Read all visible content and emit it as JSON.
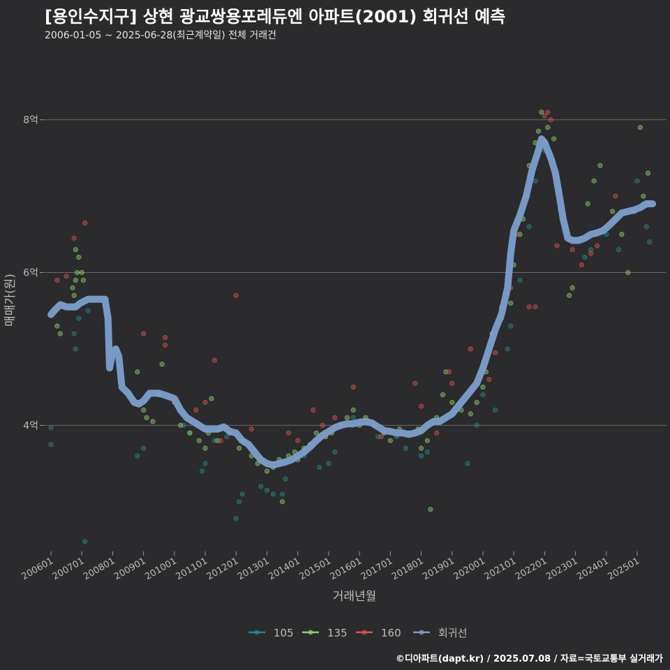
{
  "header": {
    "title": "[용인수지구] 상현 광교쌍용포레듀엔 아파트(2001) 회귀선 예측",
    "subtitle": "2006-01-05 ~ 2025-06-28(최근계약일) 전체 거래건"
  },
  "footer": {
    "credit": "©디아파트(dapt.kr) / 2025.07.08 / 자료=국토교통부 실거래가"
  },
  "chart_data": {
    "type": "scatter",
    "xlabel": "거래년월",
    "ylabel": "매매가(원)",
    "x_range": [
      2005.75,
      2025.95
    ],
    "ylim": [
      2.35,
      8.7
    ],
    "y_ticks": [
      {
        "value": 4,
        "label": "4억"
      },
      {
        "value": 6,
        "label": "6억"
      },
      {
        "value": 8,
        "label": "8억"
      }
    ],
    "x_ticks": [
      {
        "value": 2006,
        "label": "200601"
      },
      {
        "value": 2007,
        "label": "200701"
      },
      {
        "value": 2008,
        "label": "200801"
      },
      {
        "value": 2009,
        "label": "200901"
      },
      {
        "value": 2010,
        "label": "201001"
      },
      {
        "value": 2011,
        "label": "201101"
      },
      {
        "value": 2012,
        "label": "201201"
      },
      {
        "value": 2013,
        "label": "201301"
      },
      {
        "value": 2014,
        "label": "201401"
      },
      {
        "value": 2015,
        "label": "201501"
      },
      {
        "value": 2016,
        "label": "201601"
      },
      {
        "value": 2017,
        "label": "201701"
      },
      {
        "value": 2018,
        "label": "201801"
      },
      {
        "value": 2019,
        "label": "201901"
      },
      {
        "value": 2020,
        "label": "202001"
      },
      {
        "value": 2021,
        "label": "202101"
      },
      {
        "value": 2022,
        "label": "202201"
      },
      {
        "value": 2023,
        "label": "202301"
      },
      {
        "value": 2024,
        "label": "202401"
      },
      {
        "value": 2025,
        "label": "202501"
      }
    ],
    "grid": true,
    "legend_position": "bottom",
    "legend": [
      {
        "name": "105",
        "color": "#1e8b8b"
      },
      {
        "name": "135",
        "color": "#8fd16a"
      },
      {
        "name": "160",
        "color": "#d9534f"
      },
      {
        "name": "회귀선",
        "color": "#7b9fce"
      }
    ],
    "series": [
      {
        "name": "105",
        "color": "#1e8b8b",
        "points": [
          [
            2006.0,
            3.97
          ],
          [
            2006.0,
            3.75
          ],
          [
            2006.75,
            5.2
          ],
          [
            2006.8,
            5.0
          ],
          [
            2006.9,
            5.4
          ],
          [
            2007.1,
            2.48
          ],
          [
            2007.2,
            5.5
          ],
          [
            2008.8,
            3.6
          ],
          [
            2009.0,
            3.7
          ],
          [
            2010.3,
            4.0
          ],
          [
            2010.5,
            3.9
          ],
          [
            2010.9,
            3.4
          ],
          [
            2011.0,
            3.5
          ],
          [
            2011.3,
            3.8
          ],
          [
            2011.7,
            3.85
          ],
          [
            2012.0,
            2.78
          ],
          [
            2012.1,
            3.0
          ],
          [
            2012.2,
            3.1
          ],
          [
            2012.8,
            3.2
          ],
          [
            2013.0,
            3.15
          ],
          [
            2013.2,
            3.1
          ],
          [
            2013.5,
            3.1
          ],
          [
            2013.6,
            3.3
          ],
          [
            2014.2,
            3.6
          ],
          [
            2014.7,
            3.45
          ],
          [
            2015.0,
            3.5
          ],
          [
            2015.2,
            3.65
          ],
          [
            2015.8,
            4.1
          ],
          [
            2016.6,
            3.85
          ],
          [
            2017.2,
            3.85
          ],
          [
            2017.5,
            3.7
          ],
          [
            2018.0,
            3.6
          ],
          [
            2018.2,
            3.65
          ],
          [
            2019.5,
            3.5
          ],
          [
            2019.8,
            4.0
          ],
          [
            2020.0,
            4.4
          ],
          [
            2020.4,
            4.2
          ],
          [
            2020.8,
            5.0
          ],
          [
            2020.9,
            5.3
          ],
          [
            2021.2,
            5.9
          ],
          [
            2021.5,
            6.6
          ],
          [
            2021.7,
            7.2
          ],
          [
            2022.0,
            7.6
          ],
          [
            2023.3,
            6.2
          ],
          [
            2023.5,
            6.3
          ],
          [
            2024.0,
            6.5
          ],
          [
            2024.4,
            6.3
          ],
          [
            2025.0,
            7.2
          ],
          [
            2025.2,
            6.9
          ],
          [
            2025.3,
            6.6
          ],
          [
            2025.4,
            6.4
          ]
        ]
      },
      {
        "name": "135",
        "color": "#8fd16a",
        "points": [
          [
            2006.2,
            5.3
          ],
          [
            2006.3,
            5.2
          ],
          [
            2006.7,
            5.8
          ],
          [
            2006.8,
            5.9
          ],
          [
            2006.85,
            6.0
          ],
          [
            2006.9,
            6.2
          ],
          [
            2007.0,
            6.0
          ],
          [
            2007.05,
            5.9
          ],
          [
            2006.75,
            5.7
          ],
          [
            2006.8,
            6.3
          ],
          [
            2008.8,
            4.7
          ],
          [
            2009.0,
            4.2
          ],
          [
            2009.1,
            4.1
          ],
          [
            2009.3,
            4.05
          ],
          [
            2009.5,
            4.4
          ],
          [
            2009.6,
            4.8
          ],
          [
            2010.0,
            4.3
          ],
          [
            2010.2,
            4.0
          ],
          [
            2010.5,
            3.9
          ],
          [
            2010.8,
            3.8
          ],
          [
            2011.0,
            3.7
          ],
          [
            2011.1,
            3.9
          ],
          [
            2011.2,
            4.35
          ],
          [
            2011.4,
            3.8
          ],
          [
            2011.5,
            3.95
          ],
          [
            2011.8,
            3.9
          ],
          [
            2012.1,
            3.7
          ],
          [
            2012.2,
            3.8
          ],
          [
            2012.5,
            3.6
          ],
          [
            2012.7,
            3.5
          ],
          [
            2013.0,
            3.4
          ],
          [
            2013.2,
            3.45
          ],
          [
            2013.4,
            3.55
          ],
          [
            2013.5,
            3.0
          ],
          [
            2013.7,
            3.6
          ],
          [
            2013.9,
            3.65
          ],
          [
            2014.0,
            3.55
          ],
          [
            2014.2,
            3.7
          ],
          [
            2014.4,
            3.75
          ],
          [
            2014.6,
            3.9
          ],
          [
            2014.9,
            3.85
          ],
          [
            2015.1,
            3.9
          ],
          [
            2015.4,
            4.0
          ],
          [
            2015.6,
            4.1
          ],
          [
            2015.8,
            4.2
          ],
          [
            2016.0,
            4.0
          ],
          [
            2016.2,
            4.1
          ],
          [
            2016.5,
            4.0
          ],
          [
            2016.8,
            3.9
          ],
          [
            2017.0,
            3.8
          ],
          [
            2017.3,
            3.95
          ],
          [
            2017.6,
            3.9
          ],
          [
            2017.9,
            3.95
          ],
          [
            2018.0,
            3.7
          ],
          [
            2018.2,
            3.8
          ],
          [
            2018.3,
            2.9
          ],
          [
            2018.5,
            4.1
          ],
          [
            2018.7,
            4.4
          ],
          [
            2018.8,
            4.7
          ],
          [
            2019.0,
            4.3
          ],
          [
            2019.3,
            4.2
          ],
          [
            2019.6,
            4.15
          ],
          [
            2019.8,
            4.3
          ],
          [
            2020.0,
            4.5
          ],
          [
            2020.1,
            4.7
          ],
          [
            2020.3,
            5.2
          ],
          [
            2020.6,
            5.4
          ],
          [
            2020.9,
            5.6
          ],
          [
            2021.0,
            6.1
          ],
          [
            2021.2,
            6.5
          ],
          [
            2021.3,
            6.7
          ],
          [
            2021.4,
            7.0
          ],
          [
            2021.5,
            7.4
          ],
          [
            2021.7,
            7.7
          ],
          [
            2021.8,
            7.85
          ],
          [
            2021.9,
            8.1
          ],
          [
            2022.0,
            7.7
          ],
          [
            2022.1,
            7.9
          ],
          [
            2022.3,
            7.75
          ],
          [
            2022.8,
            5.7
          ],
          [
            2022.9,
            5.8
          ],
          [
            2023.4,
            6.9
          ],
          [
            2023.6,
            7.2
          ],
          [
            2023.8,
            7.4
          ],
          [
            2024.2,
            6.8
          ],
          [
            2024.5,
            6.5
          ],
          [
            2024.7,
            6.0
          ],
          [
            2024.9,
            6.8
          ],
          [
            2025.1,
            7.9
          ],
          [
            2025.2,
            7.0
          ],
          [
            2025.35,
            7.3
          ],
          [
            2025.4,
            6.9
          ]
        ]
      },
      {
        "name": "160",
        "color": "#d9534f",
        "points": [
          [
            2006.2,
            5.9
          ],
          [
            2006.5,
            5.95
          ],
          [
            2006.75,
            6.45
          ],
          [
            2007.1,
            6.65
          ],
          [
            2009.0,
            5.2
          ],
          [
            2009.7,
            5.15
          ],
          [
            2009.7,
            5.05
          ],
          [
            2010.7,
            4.2
          ],
          [
            2011.0,
            4.3
          ],
          [
            2011.3,
            4.85
          ],
          [
            2011.5,
            3.8
          ],
          [
            2012.0,
            5.7
          ],
          [
            2012.5,
            3.95
          ],
          [
            2013.7,
            3.9
          ],
          [
            2014.0,
            3.8
          ],
          [
            2014.5,
            4.2
          ],
          [
            2014.8,
            4.0
          ],
          [
            2015.2,
            4.1
          ],
          [
            2015.8,
            4.5
          ],
          [
            2016.7,
            3.85
          ],
          [
            2017.8,
            4.55
          ],
          [
            2018.0,
            4.25
          ],
          [
            2018.5,
            3.9
          ],
          [
            2018.9,
            4.7
          ],
          [
            2019.0,
            4.55
          ],
          [
            2019.6,
            5.0
          ],
          [
            2020.2,
            4.6
          ],
          [
            2020.4,
            4.95
          ],
          [
            2020.6,
            5.55
          ],
          [
            2020.9,
            5.8
          ],
          [
            2021.1,
            6.5
          ],
          [
            2021.5,
            5.55
          ],
          [
            2021.7,
            5.55
          ],
          [
            2022.0,
            8.05
          ],
          [
            2022.1,
            8.1
          ],
          [
            2022.2,
            8.0
          ],
          [
            2022.4,
            6.35
          ],
          [
            2022.9,
            6.3
          ],
          [
            2023.2,
            6.1
          ],
          [
            2023.5,
            6.25
          ],
          [
            2023.7,
            6.35
          ],
          [
            2024.3,
            7.0
          ]
        ]
      }
    ],
    "regression": {
      "name": "회귀선",
      "color": "#7b9fce",
      "points": [
        [
          2006.0,
          5.45
        ],
        [
          2006.15,
          5.52
        ],
        [
          2006.3,
          5.58
        ],
        [
          2006.5,
          5.55
        ],
        [
          2006.8,
          5.55
        ],
        [
          2006.95,
          5.6
        ],
        [
          2007.2,
          5.65
        ],
        [
          2007.5,
          5.65
        ],
        [
          2007.75,
          5.65
        ],
        [
          2007.85,
          5.4
        ],
        [
          2007.9,
          4.75
        ],
        [
          2008.0,
          4.95
        ],
        [
          2008.1,
          5.0
        ],
        [
          2008.2,
          4.9
        ],
        [
          2008.3,
          4.5
        ],
        [
          2008.5,
          4.42
        ],
        [
          2008.7,
          4.3
        ],
        [
          2008.85,
          4.28
        ],
        [
          2009.0,
          4.32
        ],
        [
          2009.2,
          4.42
        ],
        [
          2009.5,
          4.42
        ],
        [
          2009.8,
          4.38
        ],
        [
          2010.0,
          4.35
        ],
        [
          2010.2,
          4.2
        ],
        [
          2010.4,
          4.1
        ],
        [
          2010.6,
          4.05
        ],
        [
          2010.8,
          4.0
        ],
        [
          2011.0,
          3.95
        ],
        [
          2011.2,
          3.95
        ],
        [
          2011.4,
          3.95
        ],
        [
          2011.6,
          3.98
        ],
        [
          2011.8,
          3.92
        ],
        [
          2012.0,
          3.9
        ],
        [
          2012.2,
          3.8
        ],
        [
          2012.4,
          3.75
        ],
        [
          2012.6,
          3.65
        ],
        [
          2012.8,
          3.55
        ],
        [
          2013.0,
          3.5
        ],
        [
          2013.2,
          3.48
        ],
        [
          2013.4,
          3.5
        ],
        [
          2013.6,
          3.52
        ],
        [
          2013.8,
          3.55
        ],
        [
          2014.0,
          3.6
        ],
        [
          2014.2,
          3.65
        ],
        [
          2014.4,
          3.72
        ],
        [
          2014.6,
          3.8
        ],
        [
          2014.8,
          3.87
        ],
        [
          2015.0,
          3.92
        ],
        [
          2015.2,
          3.97
        ],
        [
          2015.4,
          4.0
        ],
        [
          2015.6,
          4.02
        ],
        [
          2015.8,
          4.02
        ],
        [
          2016.0,
          4.04
        ],
        [
          2016.2,
          4.05
        ],
        [
          2016.4,
          4.03
        ],
        [
          2016.6,
          3.98
        ],
        [
          2016.8,
          3.93
        ],
        [
          2017.0,
          3.92
        ],
        [
          2017.2,
          3.9
        ],
        [
          2017.4,
          3.9
        ],
        [
          2017.6,
          3.88
        ],
        [
          2017.8,
          3.9
        ],
        [
          2018.0,
          3.93
        ],
        [
          2018.2,
          4.0
        ],
        [
          2018.4,
          4.05
        ],
        [
          2018.6,
          4.05
        ],
        [
          2018.8,
          4.1
        ],
        [
          2019.0,
          4.15
        ],
        [
          2019.2,
          4.25
        ],
        [
          2019.4,
          4.35
        ],
        [
          2019.6,
          4.45
        ],
        [
          2019.8,
          4.55
        ],
        [
          2020.0,
          4.75
        ],
        [
          2020.2,
          5.0
        ],
        [
          2020.4,
          5.25
        ],
        [
          2020.6,
          5.45
        ],
        [
          2020.8,
          5.8
        ],
        [
          2020.9,
          6.25
        ],
        [
          2021.0,
          6.55
        ],
        [
          2021.2,
          6.75
        ],
        [
          2021.4,
          7.0
        ],
        [
          2021.6,
          7.35
        ],
        [
          2021.8,
          7.6
        ],
        [
          2021.9,
          7.75
        ],
        [
          2022.0,
          7.7
        ],
        [
          2022.1,
          7.6
        ],
        [
          2022.2,
          7.5
        ],
        [
          2022.35,
          7.3
        ],
        [
          2022.5,
          6.95
        ],
        [
          2022.6,
          6.7
        ],
        [
          2022.75,
          6.45
        ],
        [
          2022.9,
          6.42
        ],
        [
          2023.1,
          6.42
        ],
        [
          2023.3,
          6.45
        ],
        [
          2023.5,
          6.5
        ],
        [
          2023.7,
          6.52
        ],
        [
          2023.9,
          6.55
        ],
        [
          2024.1,
          6.62
        ],
        [
          2024.3,
          6.7
        ],
        [
          2024.5,
          6.78
        ],
        [
          2024.7,
          6.8
        ],
        [
          2024.9,
          6.82
        ],
        [
          2025.1,
          6.85
        ],
        [
          2025.3,
          6.9
        ],
        [
          2025.5,
          6.9
        ]
      ]
    }
  }
}
